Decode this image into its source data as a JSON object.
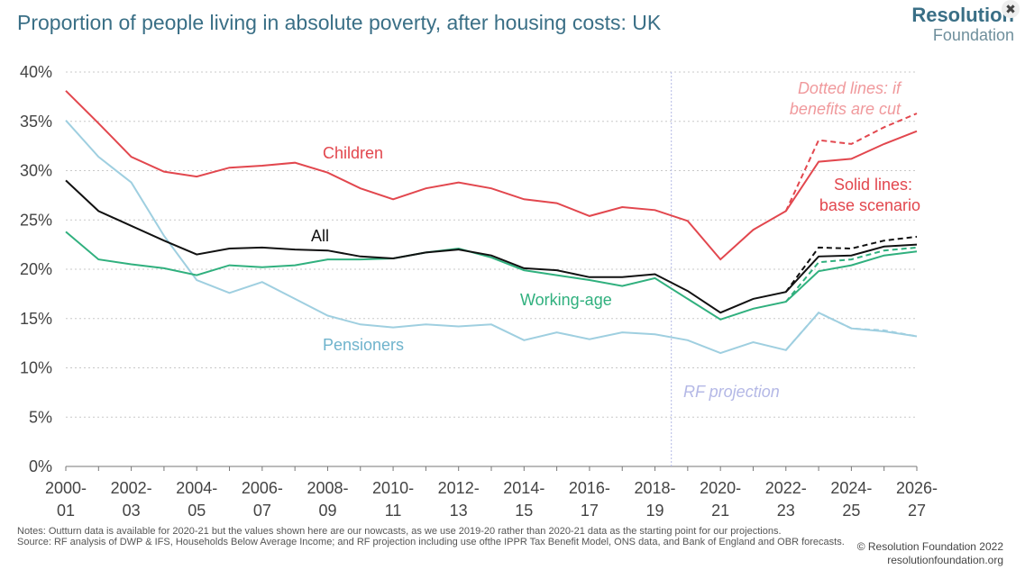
{
  "header": {
    "title": "Proportion of people living in absolute poverty, after housing costs: UK",
    "logo_line1": "Resolution",
    "logo_line2": "Foundation",
    "close_glyph": "✖"
  },
  "footer": {
    "notes": "Notes: Outturn data is available for 2020-21 but the values shown here are our nowcasts, as we use 2019-20 rather than 2020-21 data as the starting point for our projections.",
    "source": "Source: RF analysis of DWP & IFS, Households Below Average Income; and RF projection including use ofthe IPPR Tax Benefit Model, ONS data, and Bank of England and OBR forecasts.",
    "copyright": "© Resolution Foundation 2022",
    "website": "resolutionfoundation.org"
  },
  "chart_data": {
    "type": "line",
    "title": "Proportion of people living in absolute poverty, after housing costs: UK",
    "xlabel": "",
    "ylabel": "",
    "ylim": [
      0,
      40
    ],
    "yticks": [
      0,
      5,
      10,
      15,
      20,
      25,
      30,
      35,
      40
    ],
    "ytick_labels": [
      "0%",
      "5%",
      "10%",
      "15%",
      "20%",
      "25%",
      "30%",
      "35%",
      "40%"
    ],
    "grid": true,
    "x": [
      "2000-01",
      "2001-02",
      "2002-03",
      "2003-04",
      "2004-05",
      "2005-06",
      "2006-07",
      "2007-08",
      "2008-09",
      "2009-10",
      "2010-11",
      "2011-12",
      "2012-13",
      "2013-14",
      "2014-15",
      "2015-16",
      "2016-17",
      "2017-18",
      "2018-19",
      "2019-20",
      "2020-21",
      "2021-22",
      "2022-23",
      "2023-24",
      "2024-25",
      "2025-26",
      "2026-27"
    ],
    "xtick_labels": [
      {
        "i": 0,
        "line1": "2000-",
        "line2": "01"
      },
      {
        "i": 2,
        "line1": "2002-",
        "line2": "03"
      },
      {
        "i": 4,
        "line1": "2004-",
        "line2": "05"
      },
      {
        "i": 6,
        "line1": "2006-",
        "line2": "07"
      },
      {
        "i": 8,
        "line1": "2008-",
        "line2": "09"
      },
      {
        "i": 10,
        "line1": "2010-",
        "line2": "11"
      },
      {
        "i": 12,
        "line1": "2012-",
        "line2": "13"
      },
      {
        "i": 14,
        "line1": "2014-",
        "line2": "15"
      },
      {
        "i": 16,
        "line1": "2016-",
        "line2": "17"
      },
      {
        "i": 18,
        "line1": "2018-",
        "line2": "19"
      },
      {
        "i": 20,
        "line1": "2020-",
        "line2": "21"
      },
      {
        "i": 22,
        "line1": "2022-",
        "line2": "23"
      },
      {
        "i": 24,
        "line1": "2024-",
        "line2": "25"
      },
      {
        "i": 26,
        "line1": "2026-",
        "line2": "27"
      }
    ],
    "projection_start": 18.5,
    "series": [
      {
        "name": "Children",
        "color": "#e2474e",
        "label": "Children",
        "values": [
          38.1,
          34.8,
          31.4,
          29.9,
          29.4,
          30.3,
          30.5,
          30.8,
          29.8,
          28.2,
          27.1,
          28.2,
          28.8,
          28.2,
          27.1,
          26.7,
          25.4,
          26.3,
          26.0,
          24.9,
          21.0,
          24.0,
          25.9,
          30.9,
          31.2,
          32.7,
          34.0
        ]
      },
      {
        "name": "All",
        "color": "#111111",
        "label": "All",
        "values": [
          29.0,
          25.9,
          24.4,
          22.9,
          21.5,
          22.1,
          22.2,
          22.0,
          21.9,
          21.3,
          21.1,
          21.7,
          22.0,
          21.4,
          20.1,
          19.9,
          19.2,
          19.2,
          19.5,
          17.8,
          15.6,
          17.0,
          17.7,
          21.3,
          21.4,
          22.3,
          22.5
        ]
      },
      {
        "name": "Working-age",
        "color": "#30b07e",
        "label": "Working-age",
        "values": [
          23.8,
          21.0,
          20.5,
          20.1,
          19.4,
          20.4,
          20.2,
          20.4,
          21.0,
          21.0,
          21.1,
          21.7,
          22.1,
          21.2,
          19.9,
          19.4,
          18.9,
          18.3,
          19.1,
          17.0,
          14.9,
          16.0,
          16.7,
          19.8,
          20.4,
          21.4,
          21.8
        ]
      },
      {
        "name": "Pensioners",
        "color": "#9fcfe0",
        "label": "Pensioners",
        "values": [
          35.1,
          31.4,
          28.8,
          23.4,
          18.9,
          17.6,
          18.7,
          17.0,
          15.3,
          14.4,
          14.1,
          14.4,
          14.2,
          14.4,
          12.8,
          13.6,
          12.9,
          13.6,
          13.4,
          12.8,
          11.5,
          12.6,
          11.8,
          15.6,
          14.0,
          13.7,
          13.2
        ]
      }
    ],
    "dotted_series": [
      {
        "name": "Children (if benefits are cut)",
        "color": "#e2474e",
        "start_index": 22,
        "values": [
          25.9,
          33.1,
          32.7,
          34.4,
          35.8
        ]
      },
      {
        "name": "All (if benefits are cut)",
        "color": "#111111",
        "start_index": 22,
        "values": [
          17.7,
          22.2,
          22.1,
          22.9,
          23.3
        ]
      },
      {
        "name": "Working-age (if benefits are cut)",
        "color": "#30b07e",
        "start_index": 22,
        "values": [
          16.7,
          20.7,
          21.0,
          21.9,
          22.2
        ]
      },
      {
        "name": "Pensioners (if benefits are cut)",
        "color": "#9fcfe0",
        "start_index": 22,
        "values": [
          11.8,
          15.6,
          14.0,
          13.8,
          13.2
        ]
      }
    ],
    "annotations": {
      "dotted_note_line1": "Dotted lines: if",
      "dotted_note_line2": "benefits are cut",
      "solid_note_line1": "Solid lines:",
      "solid_note_line2": "base scenario",
      "projection_label": "RF projection",
      "children_label": "Children",
      "all_label": "All",
      "working_label": "Working-age",
      "pensioners_label": "Pensioners",
      "dotted_note_color": "#f0999c",
      "solid_note_color": "#e2474e",
      "projection_color": "#b4b8e6"
    }
  }
}
